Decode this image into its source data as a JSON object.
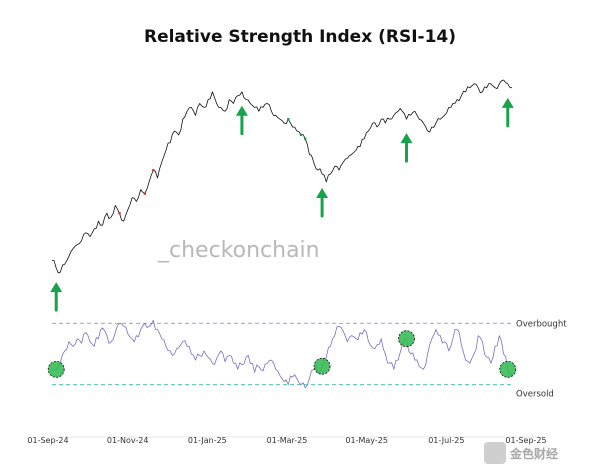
{
  "chart_data": [
    {
      "type": "line",
      "title": "Relative Strength Index (RSI-14)",
      "panel": "price",
      "x_ticks": [
        "01-Sep-24",
        "01-Nov-24",
        "01-Jan-25",
        "01-Mar-25",
        "01-May-25",
        "01-Jul-25",
        "01-Sep-25"
      ],
      "series": [
        {
          "values": [
            52,
            50,
            49,
            51,
            53,
            55,
            56,
            57,
            59,
            58,
            60,
            62,
            61,
            64,
            63,
            66,
            64,
            62,
            65,
            68,
            67,
            70,
            69,
            72,
            75,
            73,
            77,
            80,
            82,
            85,
            84,
            88,
            90,
            91,
            89,
            92,
            91,
            93,
            95,
            92,
            91,
            90,
            93,
            92,
            94,
            95,
            93,
            92,
            91,
            90,
            91,
            92,
            90,
            89,
            88,
            87,
            88,
            86,
            85,
            84,
            83,
            79,
            77,
            75,
            74,
            72,
            74,
            76,
            75,
            77,
            78,
            79,
            80,
            81,
            83,
            85,
            87,
            86,
            88,
            87,
            88,
            89,
            90,
            90,
            88,
            89,
            90,
            88,
            87,
            85,
            86,
            87,
            88,
            89,
            91,
            92,
            93,
            94,
            95,
            96,
            97,
            96,
            95,
            96,
            97,
            96,
            97,
            98,
            97,
            96
          ]
        }
      ],
      "highlight_colors": {
        "overbought": "#cc3333",
        "oversold": "#1a9a3a"
      },
      "signal_arrows": [
        1,
        45,
        64,
        84,
        108
      ],
      "arrow_color": "#17a34a"
    },
    {
      "type": "line",
      "panel": "rsi",
      "series": [
        {
          "values": [
            39,
            40,
            45,
            52,
            58,
            55,
            60,
            57,
            64,
            58,
            55,
            60,
            67,
            62,
            58,
            64,
            70,
            68,
            63,
            60,
            62,
            66,
            70,
            68,
            72,
            66,
            60,
            55,
            52,
            50,
            54,
            58,
            55,
            50,
            46,
            49,
            52,
            48,
            44,
            47,
            52,
            45,
            49,
            44,
            40,
            43,
            48,
            44,
            38,
            42,
            39,
            44,
            46,
            40,
            36,
            32,
            30,
            35,
            34,
            30,
            28,
            34,
            40,
            38,
            42,
            48,
            55,
            62,
            68,
            65,
            58,
            62,
            60,
            64,
            66,
            58,
            54,
            56,
            60,
            50,
            44,
            40,
            46,
            56,
            60,
            50,
            46,
            42,
            40,
            50,
            60,
            66,
            62,
            58,
            52,
            60,
            66,
            56,
            46,
            44,
            50,
            62,
            58,
            48,
            44,
            55,
            62,
            50,
            40,
            36
          ]
        }
      ],
      "reference_lines": [
        {
          "label": "Overbought",
          "value": 70
        },
        {
          "label": "Oversold",
          "value": 30
        }
      ],
      "ylim": [
        20,
        80
      ],
      "line_color": "#7a6fc0",
      "oversold_circles": [
        1,
        64,
        84,
        108
      ],
      "circle_color": "#2db84d"
    }
  ],
  "watermark": "_checkonchain",
  "corner_badge": "金色财经"
}
